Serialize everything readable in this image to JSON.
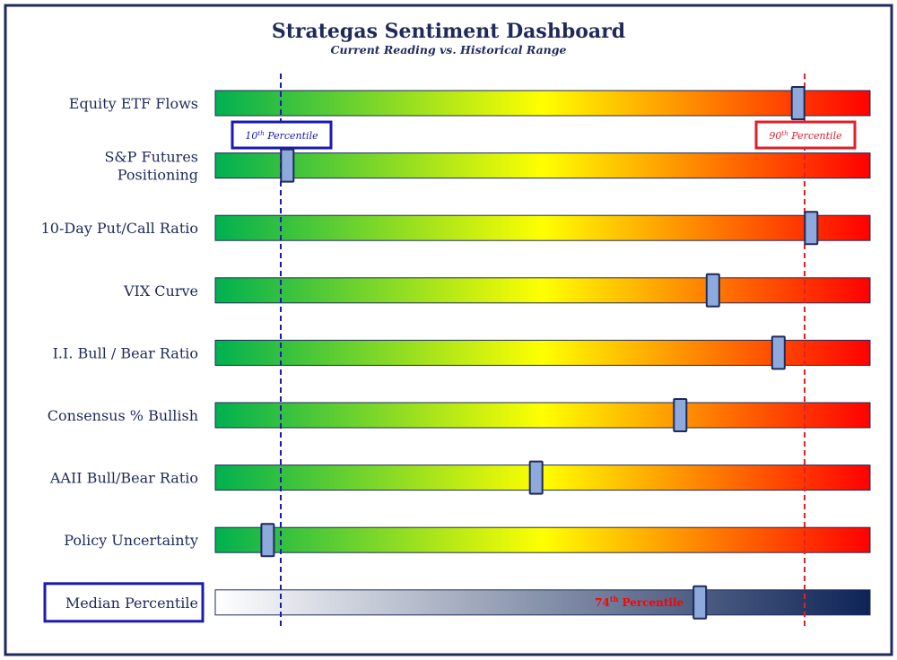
{
  "chart_data": {
    "type": "bar",
    "title": "Strategas Sentiment Dashboard",
    "subtitle": "Current Reading vs. Historical Range",
    "categories": [
      "Equity ETF Flows",
      "S&P Futures|Positioning",
      "10-Day Put/Call Ratio",
      "VIX Curve",
      "I.I. Bull / Bear Ratio",
      "Consensus % Bullish",
      "AAII Bull/Bear Ratio",
      "Policy Uncertainty"
    ],
    "percentiles": [
      89,
      11,
      91,
      76,
      86,
      71,
      49,
      8
    ],
    "median": {
      "label": "Median Percentile",
      "value": 74,
      "annotation_num": "74",
      "annotation_sup": "th",
      "annotation_word": "Percentile"
    },
    "reference_lines": [
      {
        "value": 10,
        "num": "10",
        "sup": "th",
        "word": "Percentile",
        "color": "#1a1ab4"
      },
      {
        "value": 90,
        "num": "90",
        "sup": "th",
        "word": "Percentile",
        "color": "#e0202a"
      }
    ],
    "xlim": [
      0,
      100
    ]
  },
  "colors": {
    "title": "#1f2a5a",
    "label": "#1f2a5a",
    "frame": "#1f2a5a",
    "bar_green": "#00b050",
    "bar_yellow": "#ffff00",
    "bar_red": "#ff0000",
    "median_light": "#ffffff",
    "median_dark": "#0e2456",
    "marker_fill": "#8ea9db",
    "marker_stroke": "#1f2a5a",
    "median_box": "#1a1ab4"
  }
}
